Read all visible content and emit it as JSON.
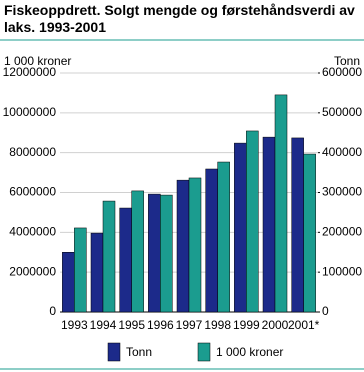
{
  "chart_data": {
    "type": "bar",
    "title": "Fiskeoppdrett. Solgt mengde og førstehåndsverdi av laks. 1993-2001",
    "ylabel": "1 000 kroner",
    "y2label": "Tonn",
    "categories": [
      "1993",
      "1994",
      "1995",
      "1996",
      "1997",
      "1998",
      "1999",
      "2000",
      "2001*"
    ],
    "series": [
      {
        "name": "Tonn",
        "color": "#1c2a8a",
        "axis": "y2",
        "values": [
          150000,
          198000,
          261000,
          296000,
          331000,
          359000,
          424000,
          439000,
          437000
        ]
      },
      {
        "name": "1 000 kroner",
        "color": "#1b9c8f",
        "values": [
          4220000,
          5570000,
          6080000,
          5870000,
          6730000,
          7530000,
          9090000,
          10900000,
          7930000
        ]
      }
    ],
    "ylim": [
      0,
      12000000
    ],
    "yticks": [
      0,
      2000000,
      4000000,
      6000000,
      8000000,
      10000000,
      12000000
    ],
    "y2lim": [
      0,
      600000
    ],
    "y2ticks": [
      0,
      100000,
      200000,
      300000,
      400000,
      500000,
      600000
    ],
    "grid": true
  }
}
